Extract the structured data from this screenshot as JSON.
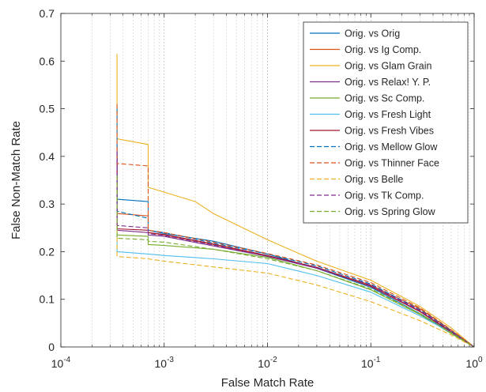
{
  "chart_data": {
    "type": "line",
    "title": "",
    "xlabel": "False Match Rate",
    "ylabel": "False Non-Match Rate",
    "xscale": "log",
    "xlim": [
      0.0001,
      1
    ],
    "ylim": [
      0,
      0.7
    ],
    "grid": "vertical minor and major dotted",
    "legend_position": "top-right",
    "x_ticks": [
      {
        "value": 0.0001,
        "base": "10",
        "exp": "-4"
      },
      {
        "value": 0.001,
        "base": "10",
        "exp": "-3"
      },
      {
        "value": 0.01,
        "base": "10",
        "exp": "-2"
      },
      {
        "value": 0.1,
        "base": "10",
        "exp": "-1"
      },
      {
        "value": 1,
        "base": "10",
        "exp": "0"
      }
    ],
    "y_ticks": [
      {
        "value": 0,
        "label": "0"
      },
      {
        "value": 0.1,
        "label": "0.1"
      },
      {
        "value": 0.2,
        "label": "0.2"
      },
      {
        "value": 0.3,
        "label": "0.3"
      },
      {
        "value": 0.4,
        "label": "0.4"
      },
      {
        "value": 0.5,
        "label": "0.5"
      },
      {
        "value": 0.6,
        "label": "0.6"
      },
      {
        "value": 0.7,
        "label": "0.7"
      }
    ],
    "series": [
      {
        "name": "Orig. vs Orig",
        "color": "#0072BD",
        "dash": "solid",
        "x": [
          0.00035,
          0.00035,
          0.0007,
          0.0007,
          0.001,
          0.003,
          0.01,
          0.03,
          0.1,
          0.3,
          0.6,
          1.0
        ],
        "y": [
          0.43,
          0.31,
          0.305,
          0.245,
          0.238,
          0.222,
          0.195,
          0.165,
          0.125,
          0.07,
          0.03,
          0.0
        ]
      },
      {
        "name": "Orig. vs Ig Comp.",
        "color": "#D95319",
        "dash": "solid",
        "x": [
          0.00035,
          0.00035,
          0.0007,
          0.0007,
          0.001,
          0.003,
          0.01,
          0.03,
          0.1,
          0.3,
          0.6,
          1.0
        ],
        "y": [
          0.42,
          0.28,
          0.275,
          0.24,
          0.235,
          0.215,
          0.19,
          0.167,
          0.13,
          0.08,
          0.035,
          0.0
        ]
      },
      {
        "name": "Orig. vs Glam Grain",
        "color": "#EDB120",
        "dash": "solid",
        "x": [
          0.00035,
          0.00035,
          0.0007,
          0.0007,
          0.001,
          0.002,
          0.003,
          0.01,
          0.03,
          0.1,
          0.3,
          0.6,
          1.0
        ],
        "y": [
          0.615,
          0.437,
          0.425,
          0.335,
          0.325,
          0.305,
          0.28,
          0.225,
          0.18,
          0.14,
          0.085,
          0.04,
          0.0
        ]
      },
      {
        "name": "Orig. vs Relax! Y. P.",
        "color": "#7E2F8E",
        "dash": "solid",
        "x": [
          0.00035,
          0.00035,
          0.0007,
          0.0007,
          0.001,
          0.003,
          0.01,
          0.03,
          0.1,
          0.3,
          0.6,
          1.0
        ],
        "y": [
          0.4,
          0.245,
          0.24,
          0.235,
          0.232,
          0.212,
          0.19,
          0.165,
          0.128,
          0.075,
          0.032,
          0.0
        ]
      },
      {
        "name": "Orig. vs Sc Comp.",
        "color": "#77AC30",
        "dash": "solid",
        "x": [
          0.00035,
          0.00035,
          0.0007,
          0.0007,
          0.001,
          0.003,
          0.01,
          0.03,
          0.1,
          0.3,
          0.6,
          1.0
        ],
        "y": [
          0.33,
          0.235,
          0.232,
          0.215,
          0.213,
          0.205,
          0.188,
          0.16,
          0.12,
          0.068,
          0.028,
          0.0
        ]
      },
      {
        "name": "Orig. vs Fresh Light",
        "color": "#4DBEEE",
        "dash": "solid",
        "x": [
          0.00035,
          0.00035,
          0.0007,
          0.001,
          0.003,
          0.01,
          0.03,
          0.1,
          0.3,
          0.6,
          1.0
        ],
        "y": [
          0.3,
          0.2,
          0.195,
          0.192,
          0.185,
          0.175,
          0.15,
          0.115,
          0.065,
          0.03,
          0.0
        ]
      },
      {
        "name": "Orig. vs Fresh Vibes",
        "color": "#A2142F",
        "dash": "solid",
        "x": [
          0.00035,
          0.00035,
          0.0007,
          0.0007,
          0.001,
          0.003,
          0.01,
          0.03,
          0.1,
          0.3,
          0.6,
          1.0
        ],
        "y": [
          0.4,
          0.248,
          0.245,
          0.24,
          0.236,
          0.216,
          0.192,
          0.167,
          0.127,
          0.074,
          0.031,
          0.0
        ]
      },
      {
        "name": "Orig. vs Mellow Glow",
        "color": "#0072BD",
        "dash": "dashed",
        "x": [
          0.00035,
          0.00035,
          0.0007,
          0.0007,
          0.001,
          0.003,
          0.01,
          0.03,
          0.1,
          0.3,
          0.6,
          1.0
        ],
        "y": [
          0.5,
          0.285,
          0.27,
          0.245,
          0.24,
          0.218,
          0.195,
          0.17,
          0.132,
          0.078,
          0.034,
          0.0
        ]
      },
      {
        "name": "Orig. vs Thinner Face",
        "color": "#D95319",
        "dash": "dashed",
        "x": [
          0.00035,
          0.00035,
          0.0007,
          0.0007,
          0.001,
          0.003,
          0.01,
          0.03,
          0.1,
          0.3,
          0.6,
          1.0
        ],
        "y": [
          0.51,
          0.385,
          0.38,
          0.245,
          0.24,
          0.22,
          0.196,
          0.172,
          0.135,
          0.082,
          0.036,
          0.0
        ]
      },
      {
        "name": "Orig. vs Belle",
        "color": "#EDB120",
        "dash": "dashed",
        "x": [
          0.00035,
          0.00035,
          0.0007,
          0.001,
          0.003,
          0.01,
          0.03,
          0.1,
          0.3,
          0.6,
          1.0
        ],
        "y": [
          0.26,
          0.19,
          0.185,
          0.18,
          0.168,
          0.155,
          0.13,
          0.095,
          0.055,
          0.025,
          0.0
        ]
      },
      {
        "name": "Orig. vs Tk Comp.",
        "color": "#7E2F8E",
        "dash": "dashed",
        "x": [
          0.00035,
          0.00035,
          0.0007,
          0.0007,
          0.001,
          0.003,
          0.01,
          0.03,
          0.1,
          0.3,
          0.6,
          1.0
        ],
        "y": [
          0.41,
          0.255,
          0.25,
          0.238,
          0.234,
          0.214,
          0.19,
          0.166,
          0.13,
          0.077,
          0.033,
          0.0
        ]
      },
      {
        "name": "Orig. vs Spring Glow",
        "color": "#77AC30",
        "dash": "dashed",
        "x": [
          0.00035,
          0.00035,
          0.0007,
          0.0007,
          0.001,
          0.003,
          0.01,
          0.03,
          0.1,
          0.3,
          0.6,
          1.0
        ],
        "y": [
          0.36,
          0.228,
          0.225,
          0.222,
          0.22,
          0.205,
          0.185,
          0.16,
          0.122,
          0.07,
          0.03,
          0.0
        ]
      }
    ]
  }
}
